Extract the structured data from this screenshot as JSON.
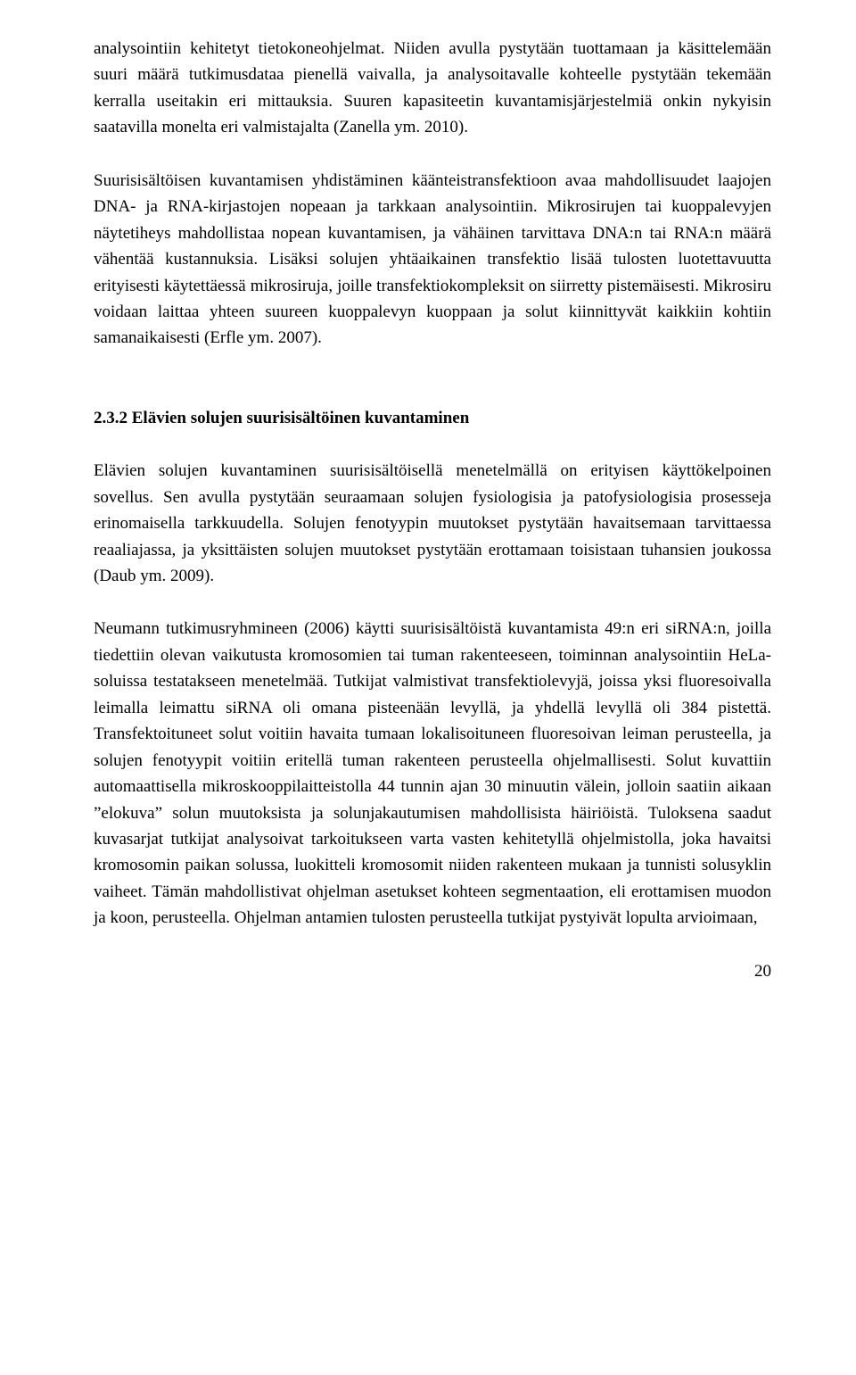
{
  "paragraphs": {
    "p1": "analysointiin kehitetyt tietokoneohjelmat. Niiden avulla pystytään tuottamaan ja käsittelemään suuri määrä tutkimusdataa pienellä vaivalla, ja analysoitavalle kohteelle pystytään tekemään kerralla useitakin eri mittauksia. Suuren kapasiteetin kuvantamisjärjestelmiä onkin nykyisin saatavilla monelta eri valmistajalta (Zanella ym. 2010).",
    "p2": "Suurisisältöisen kuvantamisen yhdistäminen käänteistransfektioon avaa mahdollisuudet laajojen DNA- ja RNA-kirjastojen nopeaan ja tarkkaan analysointiin. Mikrosirujen tai kuoppalevyjen näytetiheys mahdollistaa nopean kuvantamisen, ja vähäinen tarvittava DNA:n tai RNA:n määrä vähentää kustannuksia. Lisäksi solujen yhtäaikainen transfektio lisää tulosten luotettavuutta erityisesti käytettäessä mikrosiruja, joille transfektiokompleksit on siirretty pistemäisesti. Mikrosiru voidaan laittaa yhteen suureen kuoppalevyn kuoppaan ja solut kiinnittyvät kaikkiin kohtiin samanaikaisesti (Erfle ym. 2007).",
    "p3": "Elävien solujen kuvantaminen suurisisältöisellä menetelmällä on erityisen käyttökelpoinen sovellus. Sen avulla pystytään seuraamaan solujen fysiologisia ja patofysiologisia prosesseja erinomaisella tarkkuudella. Solujen fenotyypin muutokset pystytään havaitsemaan tarvittaessa reaaliajassa, ja yksittäisten solujen muutokset pystytään erottamaan toisistaan tuhansien joukossa (Daub ym. 2009).",
    "p4": "Neumann tutkimusryhmineen (2006) käytti suurisisältöistä kuvantamista 49:n eri siRNA:n, joilla tiedettiin olevan vaikutusta kromosomien tai tuman rakenteeseen, toiminnan analysointiin HeLa-soluissa testatakseen menetelmää. Tutkijat valmistivat transfektiolevyjä, joissa yksi fluoresoivalla leimalla leimattu siRNA oli omana pisteenään levyllä, ja yhdellä levyllä oli 384 pistettä. Transfektoituneet solut voitiin havaita tumaan lokalisoituneen fluoresoivan leiman perusteella, ja solujen fenotyypit voitiin eritellä tuman rakenteen perusteella ohjelmallisesti. Solut kuvattiin automaattisella mikroskooppilaitteistolla 44 tunnin ajan 30 minuutin välein, jolloin saatiin aikaan ”elokuva” solun muutoksista ja solunjakautumisen mahdollisista häiriöistä. Tuloksena saadut kuvasarjat tutkijat analysoivat tarkoitukseen varta vasten kehitetyllä ohjelmistolla, joka havaitsi kromosomin paikan solussa, luokitteli kromosomit niiden rakenteen mukaan ja tunnisti solusyklin vaiheet. Tämän mahdollistivat ohjelman asetukset kohteen segmentaation, eli erottamisen muodon ja koon, perusteella. Ohjelman antamien tulosten perusteella tutkijat pystyivät lopulta arvioimaan,"
  },
  "heading": "2.3.2 Elävien solujen suurisisältöinen kuvantaminen",
  "page_number": "20"
}
